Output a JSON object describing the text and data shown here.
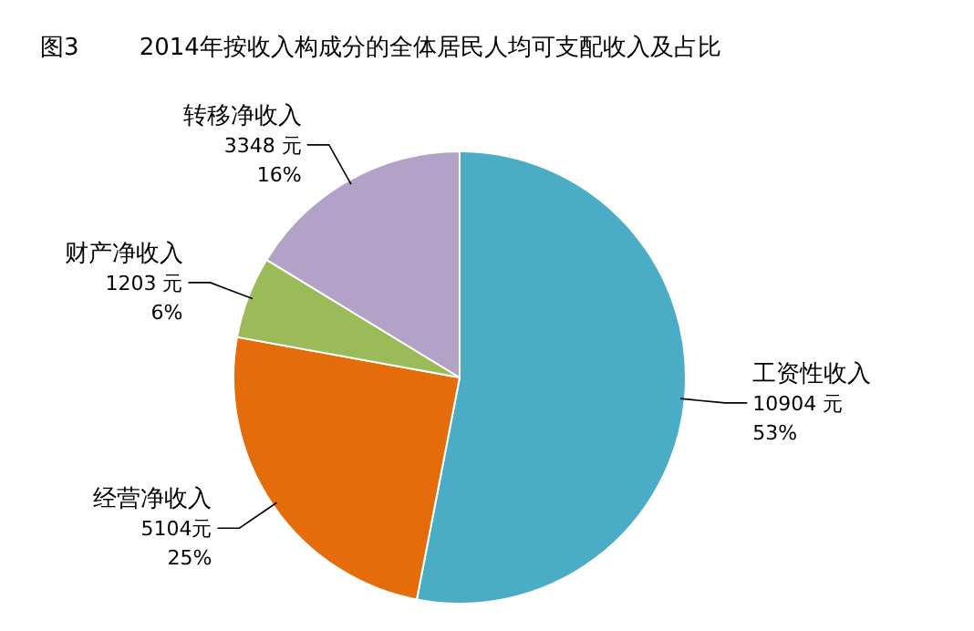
{
  "chart_data": {
    "type": "pie",
    "title": "图3        2014年按收入构成分的全体居民人均可支配收入及占比",
    "categories": [
      "工资性收入",
      "经营净收入",
      "财产净收入",
      "转移净收入"
    ],
    "values": [
      10904,
      5104,
      1203,
      3348
    ],
    "colors": [
      "#4bacc6",
      "#e46c0a",
      "#9bbb59",
      "#b2a2c7"
    ],
    "value_labels": [
      "10904 元\n53%",
      "5104元\n25%",
      "1203 元\n6%",
      "3348 元\n16%"
    ]
  }
}
